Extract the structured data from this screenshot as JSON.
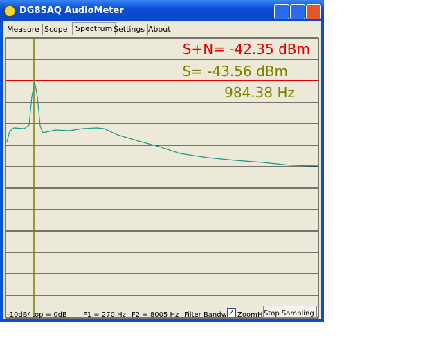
{
  "window": {
    "title": "DG8SAQ AudioMeter"
  },
  "tabs": [
    "Measure",
    "Scope",
    "Spectrum",
    "Settings",
    "About"
  ],
  "readout": {
    "signal_noise": "S+N= -42.35 dBm",
    "signal": "S= -43.56 dBm",
    "frequency": "984.38 Hz"
  },
  "status": {
    "scale": "-10dB/  top = 0dB",
    "f1": "F1 = 270 Hz",
    "f2": "F2 = 8005 Hz",
    "filter": "Filter Bandwi",
    "zoom": "Zoom",
    "unit": "Hz",
    "stop": "Stop Sampling"
  }
}
